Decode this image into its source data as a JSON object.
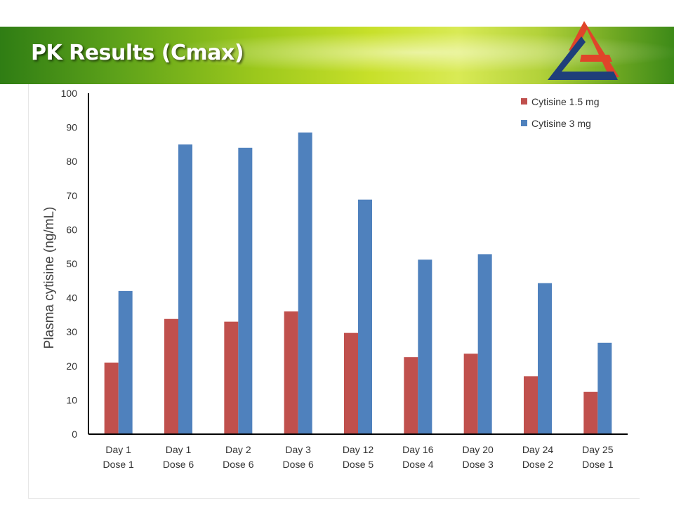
{
  "slide": {
    "title": "PK Results (Cmax)"
  },
  "colors": {
    "series1": "#c0504d",
    "series2": "#4f81bd",
    "logo_red": "#e0442a",
    "logo_navy": "#1f3f7a"
  },
  "chart_data": {
    "type": "bar",
    "categories": [
      [
        "Day 1",
        "Dose 1"
      ],
      [
        "Day 1",
        "Dose 6"
      ],
      [
        "Day 2",
        "Dose 6"
      ],
      [
        "Day 3",
        "Dose 6"
      ],
      [
        "Day 12",
        "Dose 5"
      ],
      [
        "Day 16",
        "Dose 4"
      ],
      [
        "Day 20",
        "Dose 3"
      ],
      [
        "Day 24",
        "Dose 2"
      ],
      [
        "Day 25",
        "Dose 1"
      ]
    ],
    "series": [
      {
        "name": "Cytisine 1.5 mg",
        "color": "#c0504d",
        "values": [
          21,
          33.8,
          33,
          36,
          29.7,
          22.6,
          23.6,
          17,
          12.4
        ]
      },
      {
        "name": "Cytisine 3 mg",
        "color": "#4f81bd",
        "values": [
          42,
          85,
          84,
          88.5,
          68.8,
          51.2,
          52.8,
          44.3,
          26.8
        ]
      }
    ],
    "ylabel": "Plasma cytisine (ng/mL)",
    "xlabel": "",
    "ylim": [
      0,
      100
    ],
    "yticks": [
      0,
      10,
      20,
      30,
      40,
      50,
      60,
      70,
      80,
      90,
      100
    ],
    "grid": false,
    "legend": "top-right"
  }
}
